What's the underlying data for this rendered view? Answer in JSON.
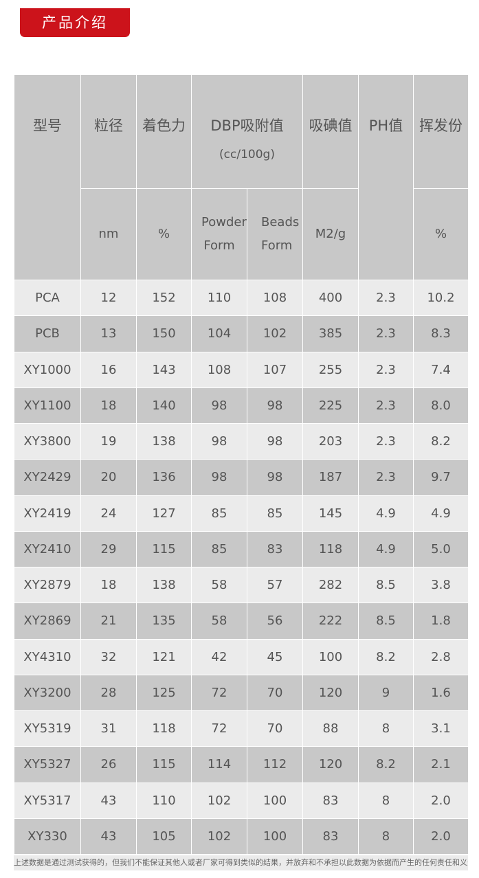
{
  "section_tab": "产品介绍",
  "header": {
    "model": "型号",
    "particle": "粒径",
    "particle_unit": "nm",
    "tint": "着色力",
    "tint_unit": "%",
    "dbp": "DBP吸附值",
    "dbp_unit": "(cc/100g)",
    "powder": "Powder Form",
    "beads": "Beads Form",
    "iodine": "吸碘值",
    "iodine_unit": "M2/g",
    "ph": "PH值",
    "volatile": "挥发份",
    "volatile_unit": "%"
  },
  "rows": [
    [
      "PCA",
      "12",
      "152",
      "110",
      "108",
      "400",
      "2.3",
      "10.2"
    ],
    [
      "PCB",
      "13",
      "150",
      "104",
      "102",
      "385",
      "2.3",
      "8.3"
    ],
    [
      "XY1000",
      "16",
      "143",
      "108",
      "107",
      "255",
      "2.3",
      "7.4"
    ],
    [
      "XY1100",
      "18",
      "140",
      "98",
      "98",
      "225",
      "2.3",
      "8.0"
    ],
    [
      "XY3800",
      "19",
      "138",
      "98",
      "98",
      "203",
      "2.3",
      "8.2"
    ],
    [
      "XY2429",
      "20",
      "136",
      "98",
      "98",
      "187",
      "2.3",
      "9.7"
    ],
    [
      "XY2419",
      "24",
      "127",
      "85",
      "85",
      "145",
      "4.9",
      "4.9"
    ],
    [
      "XY2410",
      "29",
      "115",
      "85",
      "83",
      "118",
      "4.9",
      "5.0"
    ],
    [
      "XY2879",
      "18",
      "138",
      "58",
      "57",
      "282",
      "8.5",
      "3.8"
    ],
    [
      "XY2869",
      "21",
      "135",
      "58",
      "56",
      "222",
      "8.5",
      "1.8"
    ],
    [
      "XY4310",
      "32",
      "121",
      "42",
      "45",
      "100",
      "8.2",
      "2.8"
    ],
    [
      "XY3200",
      "28",
      "125",
      "72",
      "70",
      "120",
      "9",
      "1.6"
    ],
    [
      "XY5319",
      "31",
      "118",
      "72",
      "70",
      "88",
      "8",
      "3.1"
    ],
    [
      "XY5327",
      "26",
      "115",
      "114",
      "112",
      "120",
      "8.2",
      "2.1"
    ],
    [
      "XY5317",
      "43",
      "110",
      "102",
      "100",
      "83",
      "8",
      "2.0"
    ],
    [
      "XY330",
      "43",
      "105",
      "102",
      "100",
      "83",
      "8",
      "2.0"
    ]
  ],
  "footnote": "上述数据是通过测试获得的，但我们不能保证其他人或者厂家可得到类似的结果，并放弃和不承担以此数据为依据而产生的任何责任和义务",
  "colors": {
    "accent": "#cc131b",
    "header_bg": "#c8c8c8",
    "row_light": "#ebebeb",
    "row_dark": "#c8c8c8"
  }
}
